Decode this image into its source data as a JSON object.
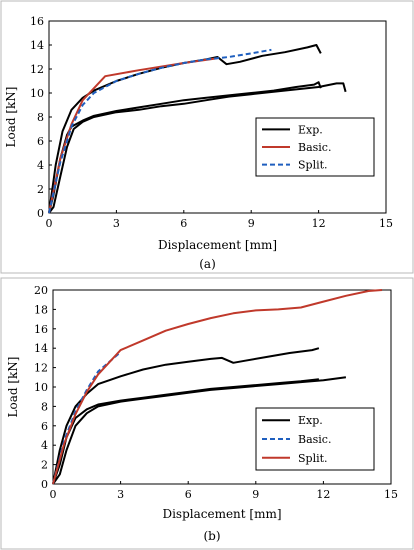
{
  "chart_data": [
    {
      "type": "line",
      "panel_label": "(a)",
      "xlabel": "Displacement [mm]",
      "ylabel": "Load [kN]",
      "xlim": [
        0,
        15
      ],
      "ylim": [
        0,
        16
      ],
      "xticks": [
        0,
        3,
        6,
        9,
        12,
        15
      ],
      "yticks": [
        0,
        2,
        4,
        6,
        8,
        10,
        12,
        14,
        16
      ],
      "legend_position": "bottom-right",
      "series": [
        {
          "name": "Exp.",
          "color": "#000000",
          "dash": "solid",
          "points": [
            [
              0,
              0
            ],
            [
              0.2,
              0.5
            ],
            [
              0.5,
              3
            ],
            [
              0.8,
              5.5
            ],
            [
              1.1,
              7
            ],
            [
              1.5,
              7.6
            ],
            [
              2,
              8
            ],
            [
              3,
              8.4
            ],
            [
              4,
              8.6
            ],
            [
              5,
              8.9
            ],
            [
              6,
              9.1
            ],
            [
              7,
              9.4
            ],
            [
              8,
              9.7
            ],
            [
              9,
              9.9
            ],
            [
              10,
              10.1
            ],
            [
              11,
              10.3
            ],
            [
              12,
              10.5
            ],
            [
              12.8,
              10.8
            ],
            [
              13.1,
              10.8
            ],
            [
              13.2,
              10.1
            ]
          ]
        },
        {
          "name": "",
          "color": "#000000",
          "dash": "solid",
          "points": [
            [
              0,
              0
            ],
            [
              0.2,
              1.5
            ],
            [
              0.5,
              4.5
            ],
            [
              0.8,
              6.5
            ],
            [
              1,
              7.2
            ],
            [
              1.5,
              7.7
            ],
            [
              2,
              8.1
            ],
            [
              3,
              8.5
            ],
            [
              4,
              8.8
            ],
            [
              5,
              9.1
            ],
            [
              6,
              9.4
            ],
            [
              7,
              9.6
            ],
            [
              8,
              9.8
            ],
            [
              9,
              10
            ],
            [
              10,
              10.2
            ],
            [
              11,
              10.5
            ],
            [
              11.8,
              10.7
            ],
            [
              12,
              10.9
            ],
            [
              12.1,
              10.4
            ]
          ]
        },
        {
          "name": "",
          "color": "#000000",
          "dash": "solid",
          "points": [
            [
              0,
              0
            ],
            [
              0.3,
              4
            ],
            [
              0.6,
              6.8
            ],
            [
              1,
              8.6
            ],
            [
              1.5,
              9.6
            ],
            [
              2,
              10.2
            ],
            [
              3,
              11
            ],
            [
              4,
              11.6
            ],
            [
              5,
              12.1
            ],
            [
              6,
              12.5
            ],
            [
              7,
              12.8
            ],
            [
              7.5,
              13
            ],
            [
              7.9,
              12.4
            ],
            [
              8.5,
              12.6
            ],
            [
              9.5,
              13.1
            ],
            [
              10.5,
              13.4
            ],
            [
              11.5,
              13.8
            ],
            [
              11.9,
              14
            ],
            [
              12.1,
              13.3
            ]
          ]
        },
        {
          "name": "Basic.",
          "color": "#c0392b",
          "dash": "solid",
          "points": [
            [
              0,
              0
            ],
            [
              0.5,
              4.5
            ],
            [
              1,
              7.4
            ],
            [
              1.5,
              9.4
            ],
            [
              2.5,
              11.4
            ],
            [
              4,
              11.9
            ],
            [
              6,
              12.5
            ],
            [
              7.5,
              12.9
            ]
          ]
        },
        {
          "name": "Split.",
          "color": "#1f5fbf",
          "dash": "dashed",
          "points": [
            [
              0,
              0
            ],
            [
              0.5,
              4.2
            ],
            [
              1,
              7.2
            ],
            [
              1.5,
              9
            ],
            [
              2,
              10
            ],
            [
              3,
              11
            ],
            [
              4,
              11.6
            ],
            [
              5,
              12.1
            ],
            [
              6,
              12.5
            ],
            [
              7,
              12.8
            ],
            [
              8,
              13
            ],
            [
              9,
              13.3
            ],
            [
              9.9,
              13.6
            ]
          ]
        }
      ]
    },
    {
      "type": "line",
      "panel_label": "(b)",
      "xlabel": "Displacement [mm]",
      "ylabel": "Load [kN]",
      "xlim": [
        0,
        15
      ],
      "ylim": [
        0,
        20
      ],
      "xticks": [
        0,
        3,
        6,
        9,
        12,
        15
      ],
      "yticks": [
        0,
        2,
        4,
        6,
        8,
        10,
        12,
        14,
        16,
        18,
        20
      ],
      "legend_position": "bottom-right",
      "series": [
        {
          "name": "Exp.",
          "color": "#000000",
          "dash": "solid",
          "points": [
            [
              0,
              0
            ],
            [
              0.3,
              1
            ],
            [
              0.6,
              3.5
            ],
            [
              1,
              6
            ],
            [
              1.5,
              7.3
            ],
            [
              2,
              8
            ],
            [
              3,
              8.5
            ],
            [
              4,
              8.8
            ],
            [
              5,
              9.1
            ],
            [
              6,
              9.4
            ],
            [
              7,
              9.7
            ],
            [
              8,
              9.9
            ],
            [
              9,
              10.1
            ],
            [
              10,
              10.3
            ],
            [
              11,
              10.5
            ],
            [
              12,
              10.7
            ],
            [
              13,
              11
            ]
          ]
        },
        {
          "name": "",
          "color": "#000000",
          "dash": "solid",
          "points": [
            [
              0,
              0
            ],
            [
              0.3,
              2
            ],
            [
              0.6,
              4.8
            ],
            [
              1,
              6.8
            ],
            [
              1.5,
              7.7
            ],
            [
              2,
              8.2
            ],
            [
              3,
              8.6
            ],
            [
              4,
              8.9
            ],
            [
              5,
              9.2
            ],
            [
              6,
              9.5
            ],
            [
              7,
              9.8
            ],
            [
              8,
              10
            ],
            [
              9,
              10.2
            ],
            [
              10,
              10.4
            ],
            [
              11,
              10.6
            ],
            [
              11.8,
              10.8
            ]
          ]
        },
        {
          "name": "",
          "color": "#000000",
          "dash": "solid",
          "points": [
            [
              0,
              0
            ],
            [
              0.3,
              3.5
            ],
            [
              0.6,
              6
            ],
            [
              1,
              8
            ],
            [
              1.5,
              9.3
            ],
            [
              2,
              10.3
            ],
            [
              3,
              11.1
            ],
            [
              4,
              11.8
            ],
            [
              5,
              12.3
            ],
            [
              6,
              12.6
            ],
            [
              7,
              12.9
            ],
            [
              7.5,
              13
            ],
            [
              8,
              12.5
            ],
            [
              8.5,
              12.7
            ],
            [
              9.5,
              13.1
            ],
            [
              10.5,
              13.5
            ],
            [
              11.5,
              13.8
            ],
            [
              11.8,
              14
            ]
          ]
        },
        {
          "name": "Basic.",
          "color": "#1f5fbf",
          "dash": "dashed",
          "points": [
            [
              0,
              0
            ],
            [
              0.5,
              4.5
            ],
            [
              1,
              7.5
            ],
            [
              1.5,
              9.7
            ],
            [
              2,
              11.6
            ],
            [
              3,
              13.6
            ]
          ]
        },
        {
          "name": "Split.",
          "color": "#c0392b",
          "dash": "solid",
          "points": [
            [
              0,
              0
            ],
            [
              0.5,
              4.2
            ],
            [
              1,
              7.2
            ],
            [
              1.5,
              9.5
            ],
            [
              2,
              11.3
            ],
            [
              3,
              13.8
            ],
            [
              4,
              14.8
            ],
            [
              5,
              15.8
            ],
            [
              6,
              16.5
            ],
            [
              7,
              17.1
            ],
            [
              8,
              17.6
            ],
            [
              9,
              17.9
            ],
            [
              10,
              18
            ],
            [
              11,
              18.2
            ],
            [
              12,
              18.8
            ],
            [
              13,
              19.4
            ],
            [
              14,
              19.9
            ],
            [
              14.6,
              20
            ]
          ]
        }
      ]
    }
  ]
}
